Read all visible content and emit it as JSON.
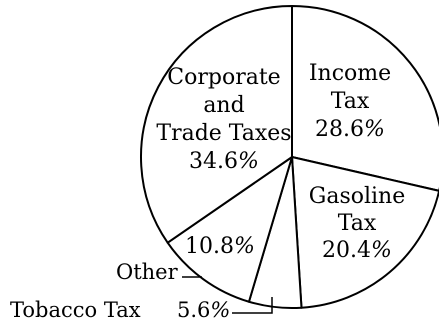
{
  "chart_data": {
    "type": "pie",
    "title": "",
    "slices": [
      {
        "label": "Income Tax",
        "label_lines": [
          "Income",
          "Tax"
        ],
        "value": 28.6,
        "value_label": "28.6%"
      },
      {
        "label": "Gasoline Tax",
        "label_lines": [
          "Gasoline",
          "Tax"
        ],
        "value": 20.4,
        "value_label": "20.4%"
      },
      {
        "label": "Tobacco Tax",
        "label_lines": [
          "Tobacco Tax"
        ],
        "value": 5.6,
        "value_label": "5.6%"
      },
      {
        "label": "Other",
        "label_lines": [
          "Other"
        ],
        "value": 10.8,
        "value_label": "10.8%"
      },
      {
        "label": "Corporate and Trade Taxes",
        "label_lines": [
          "Corporate",
          "and",
          "Trade Taxes"
        ],
        "value": 34.6,
        "value_label": "34.6%"
      }
    ],
    "colors": {
      "fill": "#ffffff",
      "stroke": "#000000"
    },
    "legend": "none"
  }
}
